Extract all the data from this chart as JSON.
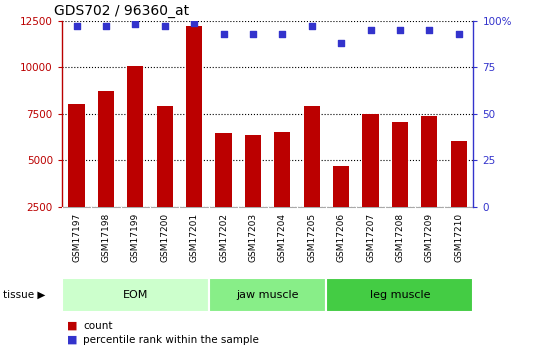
{
  "title": "GDS702 / 96360_at",
  "samples": [
    "GSM17197",
    "GSM17198",
    "GSM17199",
    "GSM17200",
    "GSM17201",
    "GSM17202",
    "GSM17203",
    "GSM17204",
    "GSM17205",
    "GSM17206",
    "GSM17207",
    "GSM17208",
    "GSM17209",
    "GSM17210"
  ],
  "counts": [
    8050,
    8700,
    10050,
    7900,
    12200,
    6450,
    6350,
    6500,
    7900,
    4700,
    7500,
    7050,
    7400,
    6050
  ],
  "percentile_ranks": [
    97,
    97,
    98,
    97,
    99,
    93,
    93,
    93,
    97,
    88,
    95,
    95,
    95,
    93
  ],
  "bar_color": "#bb0000",
  "dot_color": "#3333cc",
  "ylim_left": [
    2500,
    12500
  ],
  "ylim_right": [
    0,
    100
  ],
  "yticks_left": [
    2500,
    5000,
    7500,
    10000,
    12500
  ],
  "yticks_right": [
    0,
    25,
    50,
    75,
    100
  ],
  "ytick_labels_right": [
    "0",
    "25",
    "50",
    "75",
    "100%"
  ],
  "groups": [
    {
      "label": "EOM",
      "start": 0,
      "end": 5,
      "color": "#ccffcc"
    },
    {
      "label": "jaw muscle",
      "start": 5,
      "end": 9,
      "color": "#88ee88"
    },
    {
      "label": "leg muscle",
      "start": 9,
      "end": 14,
      "color": "#44cc44"
    }
  ],
  "tissue_label": "tissue ▶",
  "legend_count_label": "count",
  "legend_percentile_label": "percentile rank within the sample",
  "bar_color_legend": "#bb0000",
  "dot_color_legend": "#3333cc",
  "xtick_bg_color": "#d0d0d0",
  "bar_width": 0.55
}
